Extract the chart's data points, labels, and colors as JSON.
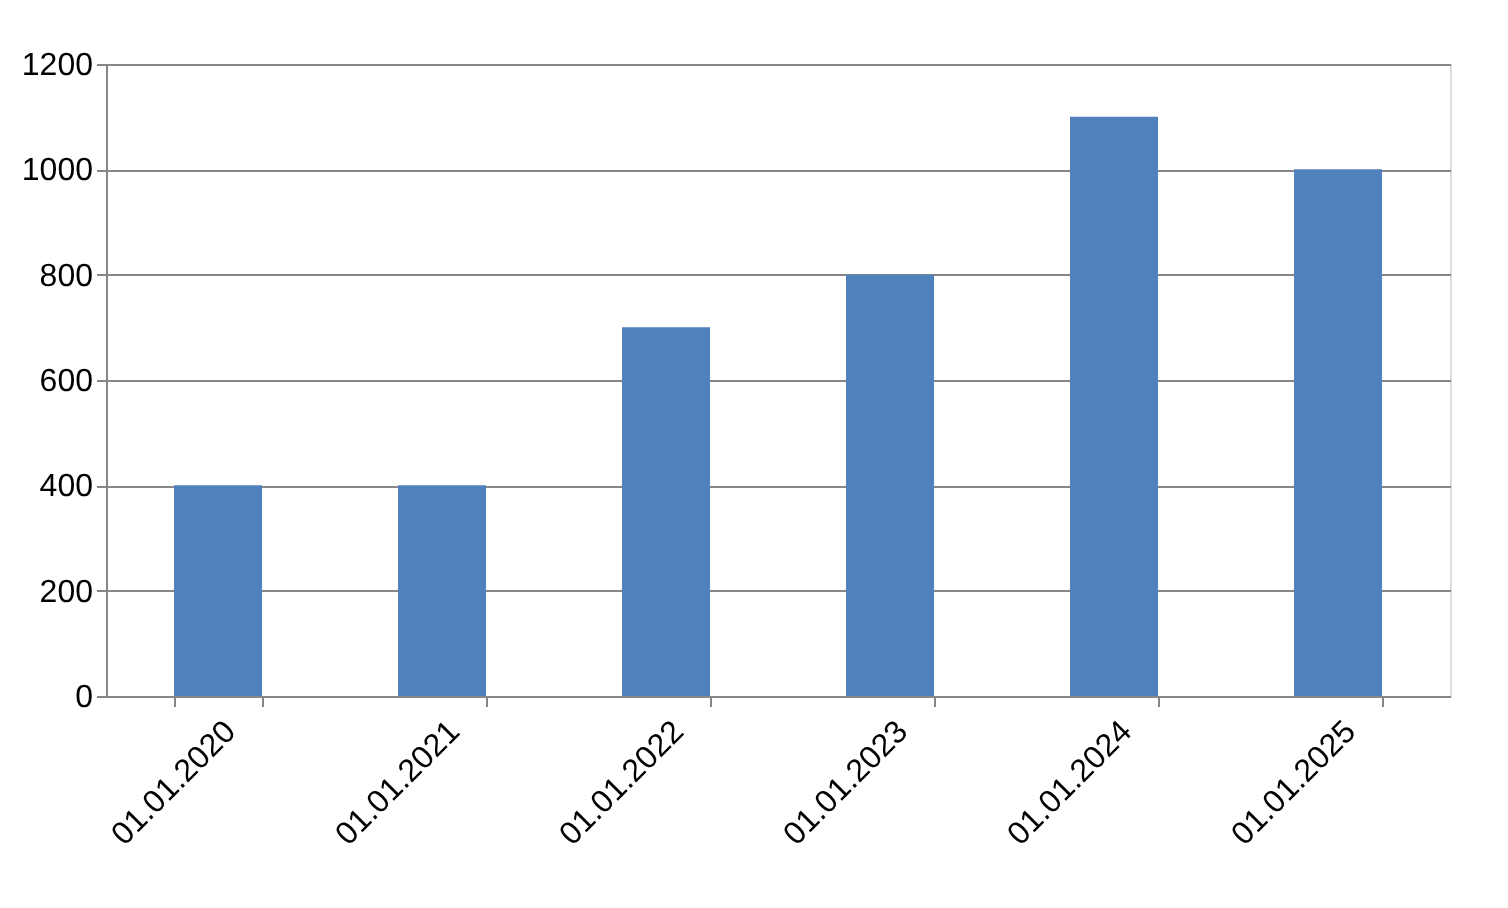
{
  "chart_data": {
    "type": "bar",
    "categories": [
      "01.01.2020",
      "01.01.2021",
      "01.01.2022",
      "01.01.2023",
      "01.01.2024",
      "01.01.2025"
    ],
    "values": [
      400,
      400,
      700,
      800,
      1100,
      1000
    ],
    "color": "#4f81bd",
    "ylim": [
      0,
      1200
    ],
    "yticks": [
      0,
      200,
      400,
      600,
      800,
      1000,
      1200
    ],
    "grid": "y"
  }
}
